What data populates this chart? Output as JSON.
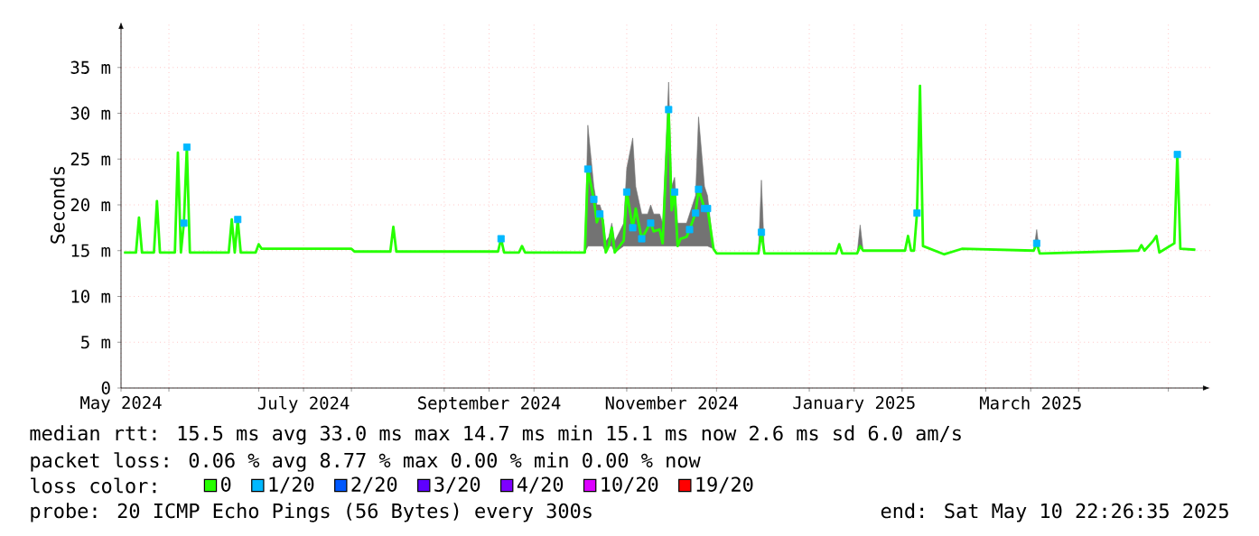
{
  "chart_data": {
    "type": "line",
    "ylabel": "Seconds",
    "legend_title": "loss color:",
    "legend": "bottom",
    "grid": true,
    "xlim": [
      "2024-05-16",
      "2025-05-15"
    ],
    "xticks": [
      {
        "value": "2024-05-16",
        "label": "May 2024"
      },
      {
        "value": "2024-06-01",
        "label": null
      },
      {
        "value": "2024-07-01",
        "label": null
      },
      {
        "value": "2024-07-16",
        "label": "July 2024"
      },
      {
        "value": "2024-08-01",
        "label": null
      },
      {
        "value": "2024-09-01",
        "label": null
      },
      {
        "value": "2024-09-16",
        "label": "September 2024"
      },
      {
        "value": "2024-10-01",
        "label": null
      },
      {
        "value": "2024-11-01",
        "label": null
      },
      {
        "value": "2024-11-16",
        "label": "November 2024"
      },
      {
        "value": "2024-12-01",
        "label": null
      },
      {
        "value": "2025-01-01",
        "label": null
      },
      {
        "value": "2025-01-16",
        "label": "January 2025"
      },
      {
        "value": "2025-02-01",
        "label": null
      },
      {
        "value": "2025-03-01",
        "label": null
      },
      {
        "value": "2025-03-16",
        "label": "March 2025"
      },
      {
        "value": "2025-04-01",
        "label": null
      },
      {
        "value": "2025-05-01",
        "label": null
      }
    ],
    "ylim": [
      0,
      40
    ],
    "yticks": [
      0,
      {
        "value": 5,
        "label": "5 m"
      },
      {
        "value": 10,
        "label": "10 m"
      },
      {
        "value": 15,
        "label": "15 m"
      },
      {
        "value": 20,
        "label": "20 m"
      },
      {
        "value": 25,
        "label": "25 m"
      },
      {
        "value": 30,
        "label": "30 m"
      },
      {
        "value": 35,
        "label": "35 m"
      }
    ],
    "series": [
      {
        "name": "0",
        "color": "#26ff00",
        "x": [
          "2024-05-17",
          "2024-05-21",
          "2024-05-22",
          "2024-05-23",
          "2024-05-27",
          "2024-05-28",
          "2024-05-29",
          "2024-06-03",
          "2024-06-04",
          "2024-06-05",
          "2024-06-06",
          "2024-06-07",
          "2024-06-08",
          "2024-06-21",
          "2024-06-22",
          "2024-06-23",
          "2024-06-24",
          "2024-06-25",
          "2024-06-30",
          "2024-07-01",
          "2024-07-02",
          "2024-08-01",
          "2024-08-02",
          "2024-08-14",
          "2024-08-15",
          "2024-08-16",
          "2024-09-19",
          "2024-09-20",
          "2024-09-21",
          "2024-09-26",
          "2024-09-27",
          "2024-09-28",
          "2024-10-18",
          "2024-10-19",
          "2024-10-21",
          "2024-10-22",
          "2024-10-23",
          "2024-10-24",
          "2024-10-25",
          "2024-10-26",
          "2024-10-27",
          "2024-10-28",
          "2024-10-31",
          "2024-11-01",
          "2024-11-03",
          "2024-11-04",
          "2024-11-06",
          "2024-11-08",
          "2024-11-09",
          "2024-11-10",
          "2024-11-12",
          "2024-11-13",
          "2024-11-15",
          "2024-11-16",
          "2024-11-17",
          "2024-11-18",
          "2024-11-19",
          "2024-11-21",
          "2024-11-22",
          "2024-11-24",
          "2024-11-25",
          "2024-11-27",
          "2024-11-28",
          "2024-11-30",
          "2024-12-01",
          "2024-12-15",
          "2024-12-16",
          "2024-12-17",
          "2025-01-10",
          "2025-01-11",
          "2025-01-12",
          "2025-01-17",
          "2025-01-18",
          "2025-01-19",
          "2025-02-02",
          "2025-02-03",
          "2025-02-04",
          "2025-02-05",
          "2025-02-06",
          "2025-02-07",
          "2025-02-08",
          "2025-02-15",
          "2025-02-21",
          "2025-03-17",
          "2025-03-18",
          "2025-03-19",
          "2025-03-20",
          "2025-04-21",
          "2025-04-22",
          "2025-04-23",
          "2025-04-26",
          "2025-04-27",
          "2025-04-28",
          "2025-05-03",
          "2025-05-04",
          "2025-05-05",
          "2025-05-10"
        ],
        "values": [
          14.8,
          14.8,
          18.6,
          14.8,
          14.8,
          20.4,
          14.8,
          14.8,
          25.7,
          14.8,
          18,
          26.3,
          14.8,
          14.8,
          18.4,
          14.8,
          18.4,
          14.8,
          14.8,
          15.7,
          15.2,
          15.2,
          14.9,
          14.9,
          17.6,
          14.9,
          14.9,
          16.3,
          14.8,
          14.8,
          15.5,
          14.8,
          14.8,
          23.9,
          20.6,
          18.1,
          19,
          18.3,
          14.8,
          15.5,
          17.5,
          14.8,
          16.1,
          21.4,
          17.5,
          19.6,
          16.3,
          17.5,
          18,
          17.1,
          17.3,
          15.8,
          30.4,
          19.4,
          21.4,
          15.5,
          16.3,
          16.5,
          17.3,
          19.1,
          21.7,
          19.6,
          19.6,
          15.2,
          14.7,
          14.7,
          17,
          14.7,
          14.7,
          15.7,
          14.7,
          14.7,
          15.5,
          15,
          15,
          16.6,
          15,
          15,
          19.1,
          33,
          15.5,
          14.6,
          15.2,
          15,
          15.8,
          14.7,
          14.7,
          15,
          15.6,
          15,
          16.1,
          16.6,
          14.8,
          15.8,
          25.5,
          15.2,
          15.1
        ],
        "lower": [
          14.8,
          14.8,
          18.6,
          14.8,
          14.8,
          20.4,
          14.8,
          14.8,
          25.7,
          14.8,
          18,
          26.3,
          14.8,
          14.8,
          18.4,
          14.8,
          18.4,
          14.8,
          14.8,
          15.7,
          15.2,
          15.2,
          14.9,
          14.9,
          17.6,
          14.9,
          14.9,
          16.3,
          14.8,
          14.8,
          15.5,
          14.8,
          14.8,
          15.5,
          15.5,
          15.5,
          15.5,
          15.5,
          14.8,
          15.5,
          15.5,
          14.8,
          15.5,
          15.5,
          15.5,
          15.5,
          15.5,
          15.5,
          15.5,
          15.5,
          15.5,
          15.5,
          15.5,
          15.5,
          15.5,
          15.5,
          15.5,
          15.5,
          15.5,
          15.5,
          15.5,
          15.5,
          15.5,
          15.2,
          14.7,
          14.7,
          17,
          14.7,
          14.7,
          15.7,
          14.7,
          14.7,
          15.5,
          15,
          15,
          16.6,
          15,
          15,
          19.1,
          33,
          15.5,
          14.6,
          15.2,
          15,
          15.8,
          14.7,
          14.7,
          15,
          15.6,
          15,
          16.1,
          16.6,
          14.8,
          15.8,
          25.5,
          15.2,
          15.1
        ],
        "upper": [
          14.8,
          14.8,
          18.6,
          14.8,
          14.8,
          20.4,
          14.8,
          14.8,
          25.7,
          14.8,
          18,
          26.3,
          14.8,
          14.8,
          18.4,
          14.8,
          18.4,
          14.8,
          14.8,
          15.7,
          15.2,
          15.2,
          14.9,
          14.9,
          17.6,
          14.9,
          14.9,
          16.3,
          14.8,
          14.8,
          15.5,
          14.8,
          14.8,
          28.7,
          22,
          20,
          20,
          19,
          16,
          16.5,
          18,
          16,
          18,
          24,
          27.3,
          22,
          19,
          19,
          20,
          19,
          19,
          18,
          33.4,
          22,
          23,
          18,
          18,
          18,
          19,
          21,
          29.6,
          22,
          21,
          15.2,
          14.7,
          14.7,
          22.7,
          14.7,
          14.7,
          15.7,
          14.7,
          14.7,
          17.8,
          15,
          15,
          16.6,
          15,
          15,
          19.1,
          33,
          15.5,
          14.6,
          15.2,
          15,
          17.3,
          14.7,
          14.7,
          15,
          15.6,
          15,
          16.1,
          16.6,
          14.8,
          15.8,
          25.5,
          15.2,
          15.1
        ]
      },
      {
        "name": "1/20",
        "type": "scatter",
        "marker": "square",
        "color": "#00b8ff",
        "x": [
          "2024-06-06",
          "2024-06-07",
          "2024-06-24",
          "2024-09-20",
          "2024-10-19",
          "2024-10-21",
          "2024-10-23",
          "2024-11-01",
          "2024-11-03",
          "2024-11-06",
          "2024-11-09",
          "2024-11-15",
          "2024-11-17",
          "2024-11-22",
          "2024-11-24",
          "2024-11-25",
          "2024-11-27",
          "2024-11-28",
          "2024-12-16",
          "2025-02-06",
          "2025-03-18",
          "2025-05-04"
        ],
        "values": [
          18,
          26.3,
          18.4,
          16.3,
          23.9,
          20.6,
          19,
          21.4,
          17.5,
          16.3,
          18,
          30.4,
          21.4,
          17.3,
          19.1,
          21.7,
          19.6,
          19.6,
          17,
          19.1,
          15.8,
          25.5
        ]
      },
      {
        "name": "2/20",
        "type": "scatter",
        "color": "#0059ff"
      },
      {
        "name": "3/20",
        "type": "scatter",
        "color": "#5e00ff"
      },
      {
        "name": "4/20",
        "type": "scatter",
        "color": "#7e00ff"
      },
      {
        "name": "10/20",
        "type": "scatter",
        "color": "#dd00ff"
      },
      {
        "name": "19/20",
        "type": "scatter",
        "color": "#ff0000"
      }
    ],
    "annotations": [
      "median rtt: 15.5 ms avg  33.0 ms max  14.7 ms min  15.1 ms now  2.6 ms sd  6.0 am/s",
      "packet loss: 0.06 % avg  8.77 % max  0.00 % min  0.00 % now",
      "probe: 20 ICMP Echo Pings (56 Bytes) every 300s",
      "end: Sat May 10 22:26:35 2025"
    ]
  }
}
